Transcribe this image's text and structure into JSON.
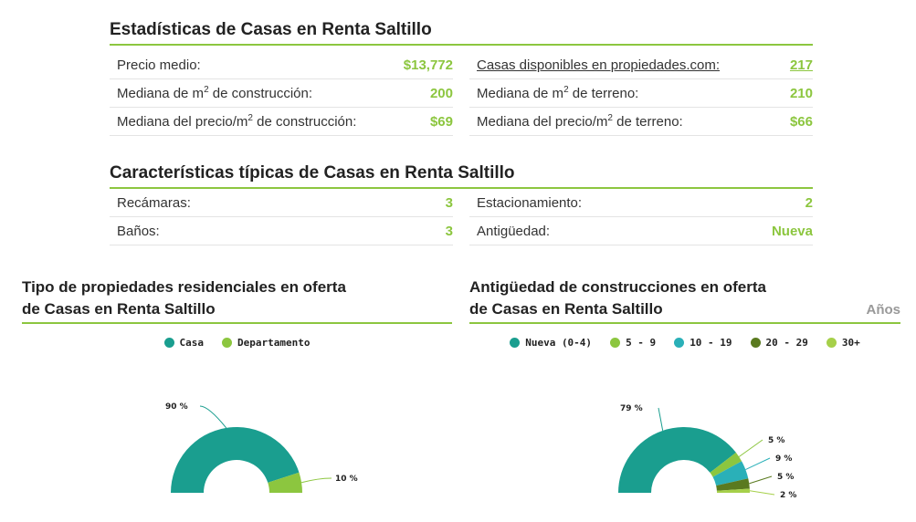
{
  "stats": {
    "title": "Estadísticas de Casas en Renta Saltillo",
    "left": [
      {
        "label": "Precio medio:",
        "value": "$13,772"
      },
      {
        "label_pre": "Mediana de m",
        "sup": "2",
        "label_post": " de construcción:",
        "value": "200"
      },
      {
        "label_pre": "Mediana del precio/m",
        "sup": "2",
        "label_post": " de construcción:",
        "value": "$69"
      }
    ],
    "right": [
      {
        "label": "Casas disponibles en propiedades.com:",
        "value": "217"
      },
      {
        "label_pre": "Mediana de m",
        "sup": "2",
        "label_post": " de terreno:",
        "value": "210"
      },
      {
        "label_pre": "Mediana del precio/m",
        "sup": "2",
        "label_post": " de terreno:",
        "value": "$66"
      }
    ]
  },
  "features": {
    "title": "Características típicas de Casas en Renta Saltillo",
    "left": [
      {
        "label": "Recámaras:",
        "value": "3"
      },
      {
        "label": "Baños:",
        "value": "3"
      }
    ],
    "right": [
      {
        "label": "Estacionamiento:",
        "value": "2"
      },
      {
        "label": "Antigüedad:",
        "value": "Nueva"
      }
    ]
  },
  "chart_data": [
    {
      "type": "pie",
      "title_line1": "Tipo de propiedades residenciales en oferta",
      "title_line2": "de Casas en Renta Saltillo",
      "categories": [
        "Casa",
        "Departamento"
      ],
      "values": [
        90,
        10
      ],
      "labels": [
        "90 %",
        "10 %"
      ],
      "colors": [
        "#1a9e8f",
        "#8cc63f"
      ]
    },
    {
      "type": "pie",
      "title_line1": "Antigüedad de construcciones en oferta",
      "title_line2": "de Casas en Renta Saltillo",
      "unit_label": "Años",
      "categories": [
        "Nueva (0-4)",
        "5 - 9",
        "10 - 19",
        "20 - 29",
        "30+"
      ],
      "values": [
        79,
        5,
        9,
        5,
        2
      ],
      "labels": [
        "79 %",
        "5 %",
        "9 %",
        "5 %",
        "2 %"
      ],
      "colors": [
        "#1a9e8f",
        "#8cc63f",
        "#2ab0b8",
        "#5a7a1f",
        "#a6d04a"
      ]
    }
  ]
}
